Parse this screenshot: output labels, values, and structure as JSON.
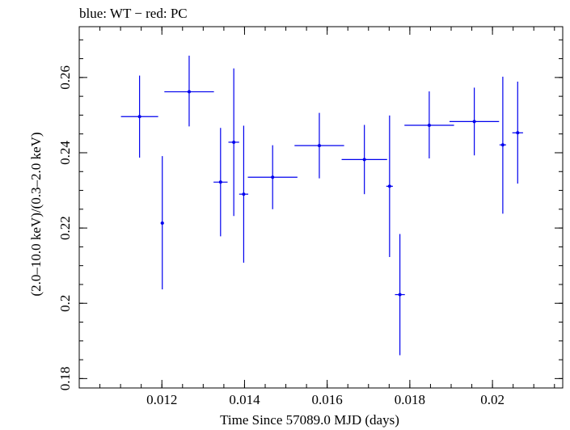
{
  "chart_data": {
    "type": "scatter",
    "title": "blue: WT − red: PC",
    "xlabel": "Time Since 57089.0 MJD (days)",
    "ylabel": "(2.0–10.0 keV)/(0.3–2.0 keV)",
    "xlim": [
      0.01,
      0.0217
    ],
    "ylim": [
      0.1775,
      0.2735
    ],
    "x_ticks": [
      {
        "value": 0.012,
        "label": "0.012"
      },
      {
        "value": 0.014,
        "label": "0.014"
      },
      {
        "value": 0.016,
        "label": "0.016"
      },
      {
        "value": 0.018,
        "label": "0.018"
      },
      {
        "value": 0.02,
        "label": "0.02"
      }
    ],
    "y_ticks": [
      {
        "value": 0.18,
        "label": "0.18"
      },
      {
        "value": 0.2,
        "label": "0.2"
      },
      {
        "value": 0.22,
        "label": "0.22"
      },
      {
        "value": 0.24,
        "label": "0.24"
      },
      {
        "value": 0.26,
        "label": "0.26"
      }
    ],
    "grid": false,
    "series": [
      {
        "name": "WT",
        "color": "#0000ee",
        "points": [
          {
            "x": 0.01146,
            "xerr": 0.00045,
            "y": 0.2496,
            "ylo": 0.2387,
            "yhi": 0.2605
          },
          {
            "x": 0.01201,
            "xerr": 4e-05,
            "y": 0.2213,
            "ylo": 0.2037,
            "yhi": 0.2391
          },
          {
            "x": 0.01266,
            "xerr": 0.0006,
            "y": 0.2562,
            "ylo": 0.247,
            "yhi": 0.2658
          },
          {
            "x": 0.01342,
            "xerr": 0.00017,
            "y": 0.2322,
            "ylo": 0.2178,
            "yhi": 0.2466
          },
          {
            "x": 0.01374,
            "xerr": 0.00013,
            "y": 0.2428,
            "ylo": 0.2232,
            "yhi": 0.2624
          },
          {
            "x": 0.01398,
            "xerr": 0.00011,
            "y": 0.229,
            "ylo": 0.2108,
            "yhi": 0.2472
          },
          {
            "x": 0.01468,
            "xerr": 0.0006,
            "y": 0.2335,
            "ylo": 0.225,
            "yhi": 0.242
          },
          {
            "x": 0.01581,
            "xerr": 0.0006,
            "y": 0.2419,
            "ylo": 0.2332,
            "yhi": 0.2506
          },
          {
            "x": 0.0169,
            "xerr": 0.00055,
            "y": 0.2382,
            "ylo": 0.229,
            "yhi": 0.2474
          },
          {
            "x": 0.01751,
            "xerr": 8e-05,
            "y": 0.2311,
            "ylo": 0.2123,
            "yhi": 0.2499
          },
          {
            "x": 0.01776,
            "xerr": 0.00012,
            "y": 0.2023,
            "ylo": 0.1862,
            "yhi": 0.2184
          },
          {
            "x": 0.01847,
            "xerr": 0.0006,
            "y": 0.2473,
            "ylo": 0.2385,
            "yhi": 0.2563
          },
          {
            "x": 0.01956,
            "xerr": 0.0006,
            "y": 0.2483,
            "ylo": 0.2393,
            "yhi": 0.2573
          },
          {
            "x": 0.02025,
            "xerr": 8e-05,
            "y": 0.2421,
            "ylo": 0.2238,
            "yhi": 0.2602
          },
          {
            "x": 0.02061,
            "xerr": 0.00013,
            "y": 0.2453,
            "ylo": 0.2318,
            "yhi": 0.2589
          }
        ]
      }
    ]
  }
}
